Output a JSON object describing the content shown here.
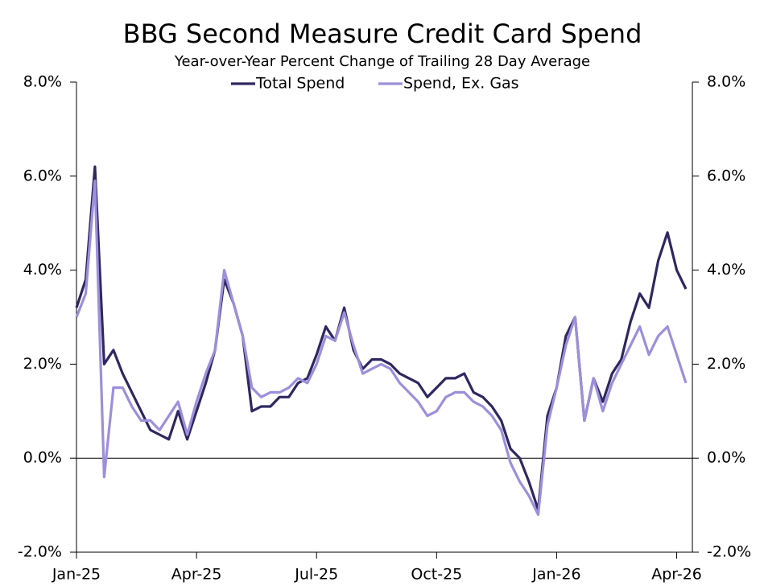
{
  "chart_data": {
    "type": "line",
    "title": "BBG Second Measure Credit Card Spend",
    "subtitle": "Year-over-Year Percent Change of Trailing 28 Day Average",
    "legend": "top",
    "categories": [
      "Jan-25",
      null,
      null,
      null,
      null,
      null,
      null,
      null,
      null,
      null,
      null,
      null,
      null,
      "Apr-25",
      null,
      null,
      null,
      null,
      null,
      null,
      null,
      null,
      null,
      null,
      null,
      null,
      "Jul-25",
      null,
      null,
      null,
      null,
      null,
      null,
      null,
      null,
      null,
      null,
      null,
      null,
      "Oct-25",
      null,
      null,
      null,
      null,
      null,
      null,
      null,
      null,
      null,
      null,
      null,
      null,
      "Jan-26",
      null,
      null,
      null,
      null,
      null,
      null,
      null,
      null,
      null,
      null,
      null,
      null,
      "Apr-26",
      null
    ],
    "series": [
      {
        "name": "Total Spend",
        "color": "#2e2860",
        "values": [
          3.2,
          3.8,
          6.2,
          2.0,
          2.3,
          1.8,
          1.4,
          1.0,
          0.6,
          0.5,
          0.4,
          1.0,
          0.4,
          1.0,
          1.6,
          2.3,
          3.8,
          3.3,
          2.6,
          1.0,
          1.1,
          1.1,
          1.3,
          1.3,
          1.6,
          1.7,
          2.2,
          2.8,
          2.5,
          3.2,
          2.3,
          1.9,
          2.1,
          2.1,
          2.0,
          1.8,
          1.7,
          1.6,
          1.3,
          1.5,
          1.7,
          1.7,
          1.8,
          1.4,
          1.3,
          1.1,
          0.8,
          0.2,
          0.0,
          -0.5,
          -1.1,
          0.9,
          1.5,
          2.6,
          3.0,
          0.8,
          1.7,
          1.2,
          1.8,
          2.1,
          2.9,
          3.5,
          3.2,
          4.2,
          4.8,
          4.0,
          3.6
        ]
      },
      {
        "name": "Spend, Ex. Gas",
        "color": "#9d8fdb",
        "values": [
          3.0,
          3.5,
          5.9,
          -0.4,
          1.5,
          1.5,
          1.1,
          0.8,
          0.8,
          0.6,
          0.9,
          1.2,
          0.5,
          1.2,
          1.8,
          2.3,
          4.0,
          3.3,
          2.6,
          1.5,
          1.3,
          1.4,
          1.4,
          1.5,
          1.7,
          1.6,
          2.0,
          2.6,
          2.5,
          3.1,
          2.4,
          1.8,
          1.9,
          2.0,
          1.9,
          1.6,
          1.4,
          1.2,
          0.9,
          1.0,
          1.3,
          1.4,
          1.4,
          1.2,
          1.1,
          0.9,
          0.6,
          -0.1,
          -0.5,
          -0.8,
          -1.2,
          0.7,
          1.5,
          2.4,
          3.0,
          0.8,
          1.7,
          1.0,
          1.6,
          2.0,
          2.4,
          2.8,
          2.2,
          2.6,
          2.8,
          2.2,
          1.6
        ]
      }
    ],
    "ylim": [
      -2,
      8
    ],
    "yticks": [
      {
        "value": -2,
        "label": "-2.0%"
      },
      {
        "value": 0,
        "label": "0.0%"
      },
      {
        "value": 2,
        "label": "2.0%"
      },
      {
        "value": 4,
        "label": "4.0%"
      },
      {
        "value": 6,
        "label": "6.0%"
      },
      {
        "value": 8,
        "label": "8.0%"
      }
    ],
    "y2lim": [
      -2,
      8
    ],
    "y2ticks": [
      {
        "value": -2,
        "label": "-2.0%"
      },
      {
        "value": 0,
        "label": "0.0%"
      },
      {
        "value": 2,
        "label": "2.0%"
      },
      {
        "value": 4,
        "label": "4.0%"
      },
      {
        "value": 6,
        "label": "6.0%"
      },
      {
        "value": 8,
        "label": "8.0%"
      }
    ]
  }
}
